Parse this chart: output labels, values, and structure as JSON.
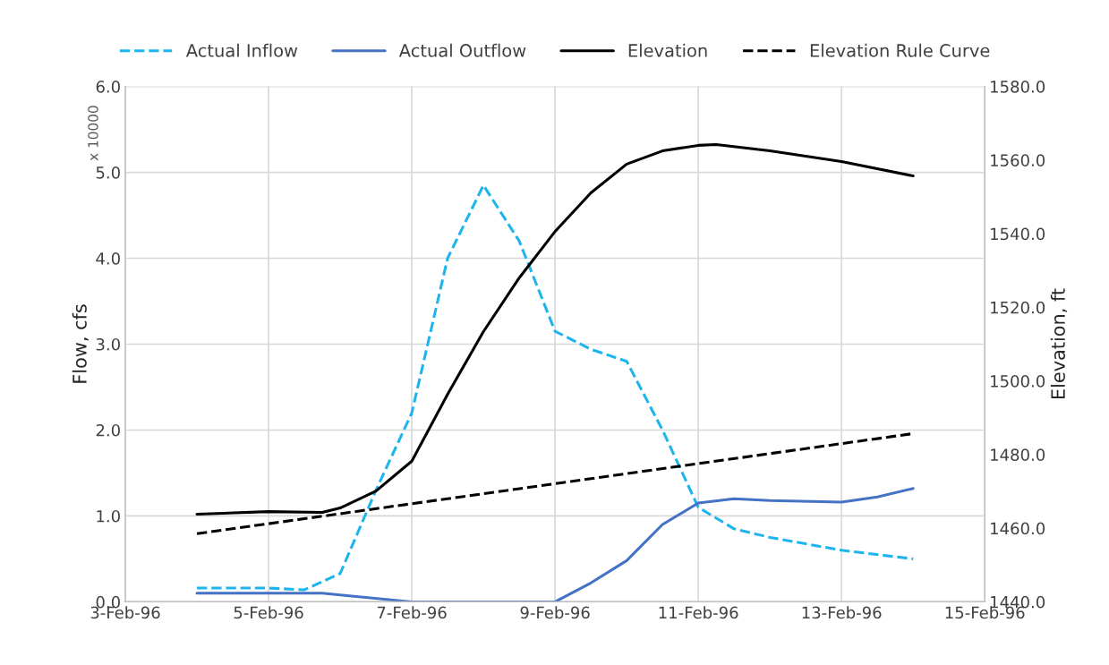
{
  "chart_data": {
    "type": "line",
    "xlabel": null,
    "ylabel": "Flow, cfs",
    "y2label": "Elevation, ft",
    "annotations": [
      "x 10000"
    ],
    "xlim": [
      "1996-02-03",
      "1996-02-15"
    ],
    "xticks": [
      {
        "value": "1996-02-03",
        "label": "3-Feb-96"
      },
      {
        "value": "1996-02-05",
        "label": "5-Feb-96"
      },
      {
        "value": "1996-02-07",
        "label": "7-Feb-96"
      },
      {
        "value": "1996-02-09",
        "label": "9-Feb-96"
      },
      {
        "value": "1996-02-11",
        "label": "11-Feb-96"
      },
      {
        "value": "1996-02-13",
        "label": "13-Feb-96"
      },
      {
        "value": "1996-02-15",
        "label": "15-Feb-96"
      }
    ],
    "ylim": [
      0,
      6
    ],
    "yticks": [
      {
        "value": 0,
        "label": "0.0"
      },
      {
        "value": 1,
        "label": "1.0"
      },
      {
        "value": 2,
        "label": "2.0"
      },
      {
        "value": 3,
        "label": "3.0"
      },
      {
        "value": 4,
        "label": "4.0"
      },
      {
        "value": 5,
        "label": "5.0"
      },
      {
        "value": 6,
        "label": "6.0"
      }
    ],
    "y2lim": [
      1440,
      1580
    ],
    "y2ticks": [
      {
        "value": 1440,
        "label": "1440.0"
      },
      {
        "value": 1460,
        "label": "1460.0"
      },
      {
        "value": 1480,
        "label": "1480.0"
      },
      {
        "value": 1500,
        "label": "1500.0"
      },
      {
        "value": 1520,
        "label": "1520.0"
      },
      {
        "value": 1540,
        "label": "1540.0"
      },
      {
        "value": 1560,
        "label": "1560.0"
      },
      {
        "value": 1580,
        "label": "1580.0"
      }
    ],
    "grid": true,
    "legend": "top",
    "series": [
      {
        "name": "Actual Inflow",
        "color": "#1eb4ec",
        "line_style": "dashed",
        "x": [
          "1996-02-04",
          "1996-02-05",
          "1996-02-05T12:00",
          "1996-02-06",
          "1996-02-06T12:00",
          "1996-02-07",
          "1996-02-07T12:00",
          "1996-02-08",
          "1996-02-08T12:00",
          "1996-02-09",
          "1996-02-09T12:00",
          "1996-02-10",
          "1996-02-10T12:00",
          "1996-02-11",
          "1996-02-11T12:00",
          "1996-02-12",
          "1996-02-13",
          "1996-02-14"
        ],
        "values": [
          0.16,
          0.16,
          0.14,
          0.33,
          1.3,
          2.2,
          4.0,
          4.85,
          4.2,
          3.15,
          2.94,
          2.8,
          2.0,
          1.1,
          0.85,
          0.75,
          0.6,
          0.5
        ]
      },
      {
        "name": "Actual Outflow",
        "color": "#4472c4",
        "line_style": "solid",
        "x": [
          "1996-02-04",
          "1996-02-05",
          "1996-02-05T18:00",
          "1996-02-06",
          "1996-02-07",
          "1996-02-08",
          "1996-02-09",
          "1996-02-09T12:00",
          "1996-02-10",
          "1996-02-10T12:00",
          "1996-02-11",
          "1996-02-11T12:00",
          "1996-02-12",
          "1996-02-13",
          "1996-02-13T12:00",
          "1996-02-14"
        ],
        "values": [
          0.1,
          0.1,
          0.1,
          0.08,
          0.0,
          0.0,
          0.0,
          0.22,
          0.48,
          0.9,
          1.15,
          1.2,
          1.18,
          1.16,
          1.22,
          1.32
        ]
      },
      {
        "name": "Elevation",
        "color": "#000000",
        "line_style": "solid",
        "axis": "y2",
        "x": [
          "1996-02-04",
          "1996-02-05",
          "1996-02-05T18:00",
          "1996-02-06",
          "1996-02-06T12:00",
          "1996-02-07",
          "1996-02-07T12:00",
          "1996-02-08",
          "1996-02-08T12:00",
          "1996-02-09",
          "1996-02-09T12:00",
          "1996-02-10",
          "1996-02-10T12:00",
          "1996-02-11",
          "1996-02-11T06:00",
          "1996-02-12",
          "1996-02-13",
          "1996-02-14"
        ],
        "values": [
          1463.8,
          1464.5,
          1464.3,
          1465.5,
          1470.1,
          1478.2,
          1496.4,
          1513.4,
          1528,
          1540.6,
          1551.1,
          1558.9,
          1562.5,
          1564,
          1564.2,
          1562.5,
          1559.6,
          1555.7
        ]
      },
      {
        "name": "Elevation Rule Curve",
        "color": "#000000",
        "line_style": "dashed",
        "axis": "y2",
        "x": [
          "1996-02-04",
          "1996-02-14"
        ],
        "values": [
          1458.5,
          1485.7
        ]
      }
    ]
  }
}
